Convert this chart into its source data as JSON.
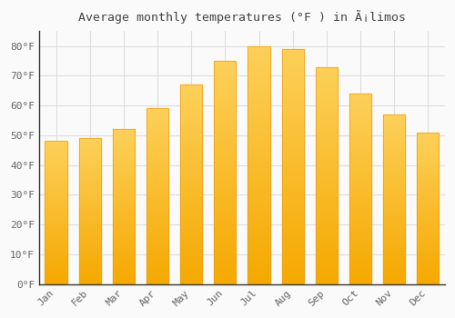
{
  "title": "Average monthly temperatures (°F ) in Ã¡limos",
  "months": [
    "Jan",
    "Feb",
    "Mar",
    "Apr",
    "May",
    "Jun",
    "Jul",
    "Aug",
    "Sep",
    "Oct",
    "Nov",
    "Dec"
  ],
  "values": [
    48,
    49,
    52,
    59,
    67,
    75,
    80,
    79,
    73,
    64,
    57,
    51
  ],
  "bar_color_top": "#FCC23A",
  "bar_color_bottom": "#F5A800",
  "bar_edge_color": "#E8A020",
  "background_color": "#FAFAFA",
  "grid_color": "#DDDDDD",
  "ylabel_ticks": [
    0,
    10,
    20,
    30,
    40,
    50,
    60,
    70,
    80
  ],
  "ylim": [
    0,
    85
  ],
  "title_fontsize": 9.5,
  "tick_fontsize": 8,
  "tick_color": "#666666",
  "title_color": "#444444"
}
